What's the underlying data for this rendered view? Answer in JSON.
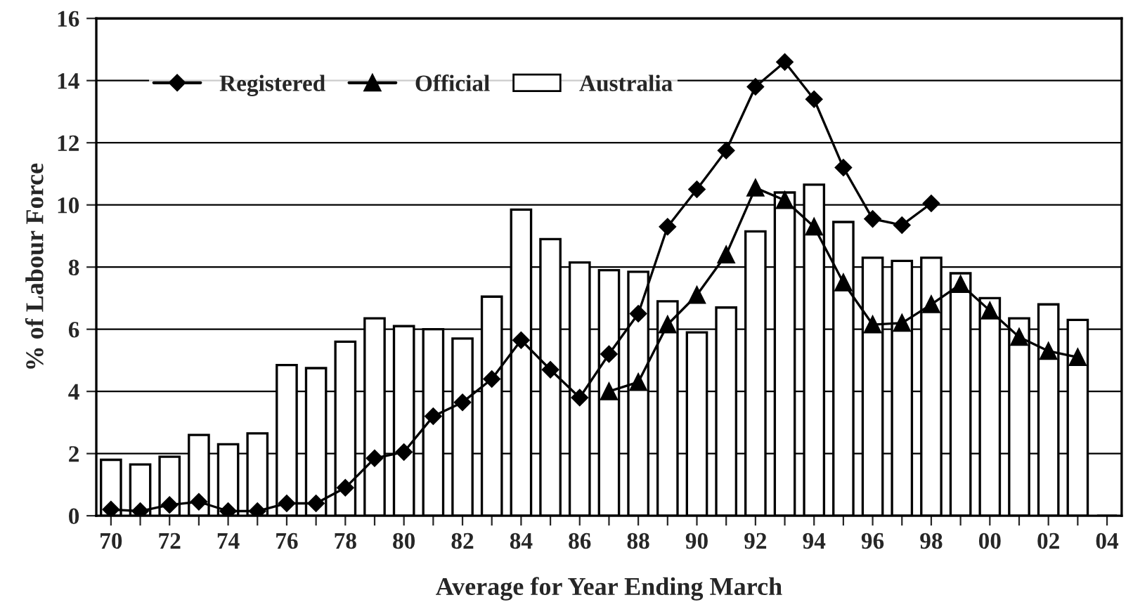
{
  "chart_data": {
    "type": "bar",
    "xlabel": "Average for Year Ending March",
    "ylabel": "% of Labour Force",
    "categories": [
      "70",
      null,
      "72",
      null,
      "74",
      null,
      "76",
      null,
      "78",
      null,
      "80",
      null,
      "82",
      null,
      "84",
      null,
      "86",
      null,
      "88",
      null,
      "90",
      null,
      "92",
      null,
      "94",
      null,
      "96",
      null,
      "98",
      null,
      "00",
      null,
      "02",
      null,
      "04"
    ],
    "series": [
      {
        "name": "Registered",
        "type": "line",
        "color": "#000000",
        "marker": "diamond",
        "values": [
          0.2,
          0.15,
          0.35,
          0.45,
          0.15,
          0.15,
          0.4,
          0.4,
          0.9,
          1.85,
          2.05,
          3.2,
          3.65,
          4.4,
          5.65,
          4.7,
          3.8,
          5.2,
          6.5,
          9.3,
          10.5,
          11.75,
          13.8,
          14.6,
          13.4,
          11.2,
          9.55,
          9.35,
          10.05,
          null,
          null,
          null,
          null,
          null,
          null
        ]
      },
      {
        "name": "Official",
        "type": "line",
        "color": "#000000",
        "marker": "triangle",
        "values": [
          null,
          null,
          null,
          null,
          null,
          null,
          null,
          null,
          null,
          null,
          null,
          null,
          null,
          null,
          null,
          null,
          null,
          4.0,
          4.3,
          6.15,
          7.1,
          8.4,
          10.55,
          10.15,
          9.3,
          7.5,
          6.15,
          6.2,
          6.8,
          7.45,
          6.6,
          5.75,
          5.3,
          5.1,
          null
        ]
      },
      {
        "name": "Australia",
        "color": "#ffffff",
        "values": [
          1.8,
          1.65,
          1.9,
          2.6,
          2.3,
          2.65,
          4.85,
          4.75,
          5.6,
          6.35,
          6.1,
          6.0,
          5.7,
          7.05,
          9.85,
          8.9,
          8.15,
          7.9,
          7.85,
          6.9,
          5.9,
          6.7,
          9.15,
          10.4,
          10.65,
          9.45,
          8.3,
          8.2,
          8.3,
          7.8,
          7.0,
          6.35,
          6.8,
          6.3,
          null
        ]
      }
    ],
    "ylim": [
      0,
      16
    ],
    "yticks": [
      0,
      2,
      4,
      6,
      8,
      10,
      12,
      14,
      16
    ],
    "grid": "y",
    "legend": "top left"
  }
}
